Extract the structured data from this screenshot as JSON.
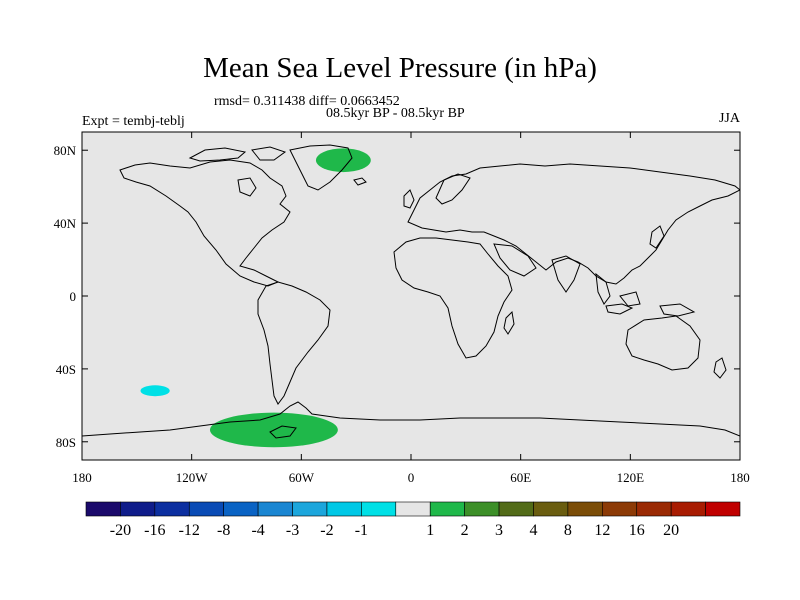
{
  "title": "Mean Sea Level Pressure (in hPa)",
  "stats_line": "rmsd= 0.311438  diff= 0.0663452",
  "period_label": "08.5kyr BP - 08.5kyr BP",
  "experiment_label": "Expt = tembj-teblj",
  "season_label": "JJA",
  "chart_data": {
    "type": "heatmap",
    "map_projection": "cylindrical-equidistant",
    "lon_range": [
      -180,
      180
    ],
    "lat_range": [
      -90,
      90
    ],
    "x_ticks": [
      {
        "value": -180,
        "label": "180"
      },
      {
        "value": -120,
        "label": "120W"
      },
      {
        "value": -60,
        "label": "60W"
      },
      {
        "value": 0,
        "label": "0"
      },
      {
        "value": 60,
        "label": "60E"
      },
      {
        "value": 120,
        "label": "120E"
      },
      {
        "value": 180,
        "label": "180"
      }
    ],
    "y_ticks": [
      {
        "value": 80,
        "label": "80N"
      },
      {
        "value": 40,
        "label": "40N"
      },
      {
        "value": 0,
        "label": "0"
      },
      {
        "value": -40,
        "label": "40S"
      },
      {
        "value": -80,
        "label": "80S"
      }
    ],
    "background_color": "#e6e6e6",
    "anomaly_regions": [
      {
        "name": "greenland",
        "level": "1 to 2",
        "color": "#1fb84a",
        "lon": [
          -52,
          -22
        ],
        "lat": [
          68,
          81
        ]
      },
      {
        "name": "antarctic-peninsula",
        "level": "1 to 2",
        "color": "#1fb84a",
        "lon": [
          -110,
          -40
        ],
        "lat": [
          -83,
          -64
        ]
      },
      {
        "name": "south-pacific",
        "level": "-2 to -1",
        "color": "#00e0e6",
        "lon": [
          -148,
          -132
        ],
        "lat": [
          -55,
          -49
        ]
      }
    ],
    "colorbar": {
      "colors": [
        "#1b0a6b",
        "#0f1c8a",
        "#0c2fa0",
        "#0a4bb5",
        "#0a63c4",
        "#1a86d2",
        "#1ca6dc",
        "#00c8e6",
        "#00e0e6",
        "#e6e6e6",
        "#1fb84a",
        "#3c8f28",
        "#526b18",
        "#6a5d10",
        "#7b4d08",
        "#8c3a06",
        "#9a2a04",
        "#a81c02",
        "#c00000"
      ],
      "labels": [
        "-20",
        "-16",
        "-12",
        "-8",
        "-4",
        "-3",
        "-2",
        "-1",
        "1",
        "2",
        "3",
        "4",
        "8",
        "12",
        "16",
        "20"
      ]
    }
  }
}
